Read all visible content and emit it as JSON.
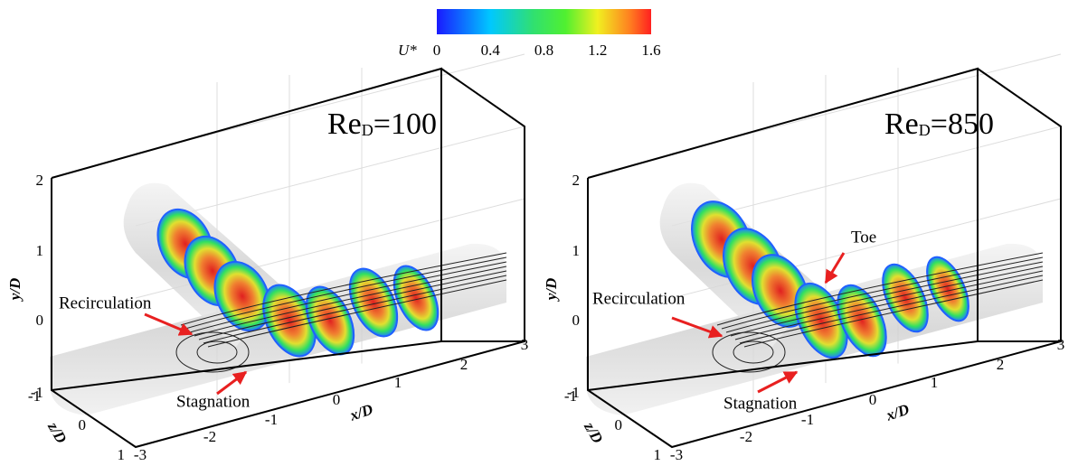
{
  "colorbar": {
    "label": "U*",
    "ticks": [
      "0",
      "0.4",
      "0.8",
      "1.2",
      "1.6"
    ]
  },
  "panels": [
    {
      "title": {
        "base": "Re",
        "sub": "D",
        "rest": "=100"
      },
      "annotations": [
        "Recirculation",
        "Stagnation"
      ],
      "axes": {
        "x_label": "x/D",
        "y_label": "y/D",
        "z_label": "z/D",
        "x_ticks": [
          "-3",
          "-2",
          "-1",
          "0",
          "1",
          "2",
          "3"
        ],
        "y_ticks": [
          "2",
          "1",
          "0",
          "-1"
        ],
        "z_ticks": [
          "1",
          "0",
          "-1"
        ]
      }
    },
    {
      "title": {
        "base": "Re",
        "sub": "D",
        "rest": "=850"
      },
      "annotations": [
        "Toe",
        "Recirculation",
        "Stagnation"
      ],
      "axes": {
        "x_label": "x/D",
        "y_label": "y/D",
        "z_label": "z/D",
        "x_ticks": [
          "-3",
          "-2",
          "-1",
          "0",
          "1",
          "2",
          "3"
        ],
        "y_ticks": [
          "2",
          "1",
          "0",
          "-1"
        ],
        "z_ticks": [
          "1",
          "0",
          "-1"
        ]
      }
    }
  ]
}
